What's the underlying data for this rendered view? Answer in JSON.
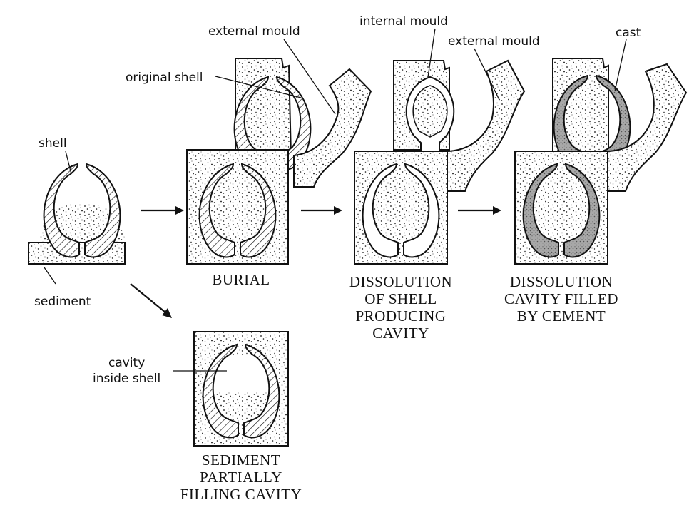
{
  "colors": {
    "ink": "#111111",
    "paper": "#ffffff",
    "cement": "#b0b0b0"
  },
  "labels": {
    "shell": "shell",
    "sediment": "sediment",
    "original_shell": "original shell",
    "external_mould_1": "external mould",
    "internal_mould": "internal mould",
    "external_mould_2": "external mould",
    "cast": "cast",
    "cavity_line1": "cavity",
    "cavity_line2": "inside shell"
  },
  "stages": {
    "burial": "BURIAL",
    "dissolution": [
      "DISSOLUTION",
      "OF SHELL",
      "PRODUCING",
      "CAVITY"
    ],
    "cement": [
      "DISSOLUTION",
      "CAVITY FILLED",
      "BY CEMENT"
    ],
    "sediment_fill": [
      "SEDIMENT",
      "PARTIALLY",
      "FILLING CAVITY"
    ]
  }
}
